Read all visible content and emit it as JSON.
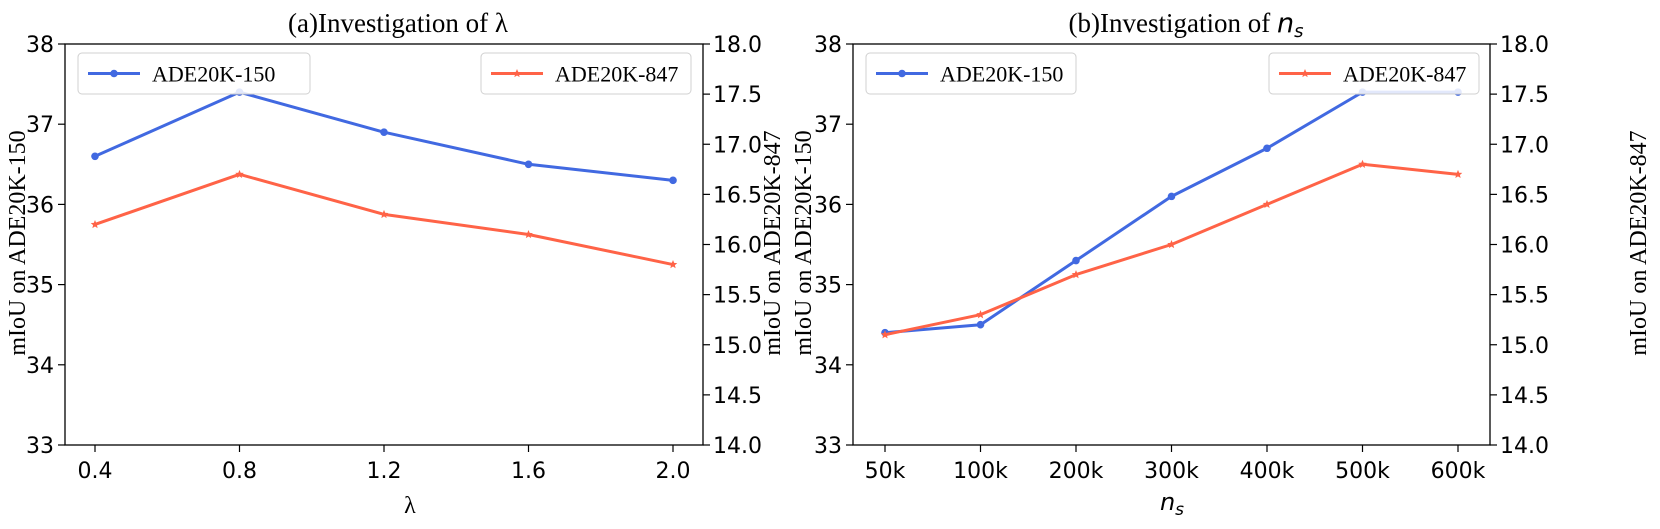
{
  "chart_data": [
    {
      "type": "line",
      "title": "(a)Investigation of λ",
      "xlabel": "λ",
      "ylabel_left": "mIoU on ADE20K-150",
      "ylabel_right": "mIoU on ADE20K-847",
      "categories": [
        "0.4",
        "0.8",
        "1.2",
        "1.6",
        "2.0"
      ],
      "ylim_left": [
        33,
        38
      ],
      "yticks_left": [
        "33",
        "34",
        "35",
        "36",
        "37",
        "38"
      ],
      "ylim_right": [
        14.0,
        18.0
      ],
      "yticks_right": [
        "14.0",
        "14.5",
        "15.0",
        "15.5",
        "16.0",
        "16.5",
        "17.0",
        "17.5",
        "18.0"
      ],
      "grid": false,
      "series": [
        {
          "name": "ADE20K-150",
          "axis": "left",
          "color": "#4169e1",
          "marker": "circle",
          "values": [
            36.6,
            37.4,
            36.9,
            36.5,
            36.3
          ]
        },
        {
          "name": "ADE20K-847",
          "axis": "right",
          "color": "#ff6347",
          "marker": "star",
          "values": [
            16.2,
            16.7,
            16.3,
            16.1,
            15.8
          ]
        }
      ],
      "legend_left_placement": "top-left",
      "legend_right_placement": "top-right"
    },
    {
      "type": "line",
      "title_prefix": "(b)Investigation of ",
      "title_math": "n",
      "title_sub": "s",
      "xlabel_math": "n",
      "xlabel_sub": "s",
      "ylabel_left": "mIoU on ADE20K-150",
      "ylabel_right": "mIoU on ADE20K-847",
      "categories": [
        "50k",
        "100k",
        "200k",
        "300k",
        "400k",
        "500k",
        "600k"
      ],
      "ylim_left": [
        33,
        38
      ],
      "yticks_left": [
        "33",
        "34",
        "35",
        "36",
        "37",
        "38"
      ],
      "ylim_right": [
        14.0,
        18.0
      ],
      "yticks_right": [
        "14.0",
        "14.5",
        "15.0",
        "15.5",
        "16.0",
        "16.5",
        "17.0",
        "17.5",
        "18.0"
      ],
      "grid": false,
      "series": [
        {
          "name": "ADE20K-150",
          "axis": "left",
          "color": "#4169e1",
          "marker": "circle",
          "values": [
            34.4,
            34.5,
            35.3,
            36.1,
            36.7,
            37.4,
            37.4
          ]
        },
        {
          "name": "ADE20K-847",
          "axis": "right",
          "color": "#ff6347",
          "marker": "star",
          "values": [
            15.1,
            15.3,
            15.7,
            16.0,
            16.4,
            16.8,
            16.7
          ]
        }
      ],
      "legend_left_placement": "top-left",
      "legend_right_placement": "top-right"
    }
  ]
}
